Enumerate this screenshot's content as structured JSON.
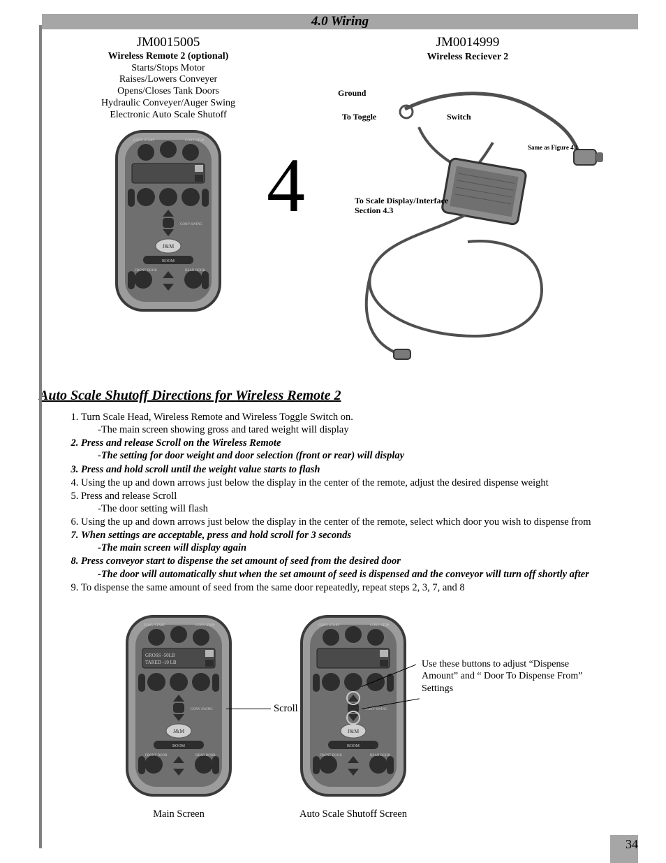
{
  "header": {
    "title": "4.0 Wiring"
  },
  "big4": "4",
  "remote": {
    "part_no": "JM0015005",
    "name": "Wireless Remote 2 (optional)",
    "lines": [
      "Starts/Stops Motor",
      "Raises/Lowers Conveyer",
      "Opens/Closes Tank Doors",
      "Hydraulic Conveyer/Auger Swing",
      "Electronic Auto Scale Shutoff"
    ],
    "btn_labels": {
      "conv_start": "CONV START",
      "conv_stop": "CONV STOP",
      "jm": "J&M",
      "boom": "BOOM",
      "front_door": "FRONT DOOR",
      "rear_door": "REAR DOOR",
      "conv_swing": "CONV SWING"
    },
    "lcd_main": {
      "line1": "GROSS  -50LB",
      "line2": "TARED  -10 LB"
    }
  },
  "receiver": {
    "part_no": "JM0014999",
    "name": "Wireless Reciever 2",
    "labels": {
      "ground": "Ground",
      "to_toggle": "To Toggle",
      "switch": "Switch",
      "same_as": "Same as Figure 4.1",
      "to_scale1": "To Scale Display/Interface",
      "to_scale2": "Section 4.3"
    }
  },
  "section_title": "Auto Scale Shutoff Directions for Wireless Remote 2",
  "steps": [
    {
      "n": "1.",
      "bold": false,
      "text": "Turn Scale Head, Wireless Remote and Wireless Toggle Switch on.",
      "sub": "-The main screen showing gross and tared weight will display",
      "sub_bold": false
    },
    {
      "n": "2.",
      "bold": true,
      "text": "Press and release Scroll on the Wireless Remote",
      "sub": "-The setting for door weight and door selection (front or rear) will display",
      "sub_bold": true
    },
    {
      "n": "3.",
      "bold": true,
      "text": "Press and hold scroll until the weight value starts to flash"
    },
    {
      "n": "4.",
      "bold": false,
      "text": "Using the up and down arrows just below the display in the center of the remote, adjust the desired dispense weight"
    },
    {
      "n": "5.",
      "bold": false,
      "text": "Press and release Scroll",
      "sub": "-The door setting will flash",
      "sub_bold": false
    },
    {
      "n": "6.",
      "bold": false,
      "text": "Using the up and down arrows just below the display in the center of the remote, select which door you wish to dispense from"
    },
    {
      "n": "7.",
      "bold": true,
      "text": "When settings are acceptable, press and hold scroll for 3 seconds",
      "sub": "-The main screen will display again",
      "sub_bold": true
    },
    {
      "n": "8.",
      "bold": true,
      "text": "Press conveyor start to dispense the set amount of seed from the desired door",
      "sub": "-The door will automatically shut when the set amount of seed is dispensed and the conveyor will turn off shortly after",
      "sub_bold": true
    },
    {
      "n": "9.",
      "bold": false,
      "text": "To dispense the same amount of seed from the same door repeatedly, repeat steps 2, 3, 7, and 8"
    }
  ],
  "bottom": {
    "left_caption": "Main Screen",
    "scroll_label": "Scroll",
    "right_caption": "Auto Scale Shutoff Screen",
    "right_callout": "Use these buttons to adjust “Dispense Amount” and “ Door To Dispense From” Settings"
  },
  "page_number": "34",
  "style": {
    "remote_body_fill": "#9c9c9c",
    "remote_body_stroke": "#3a3a3a",
    "remote_inner_fill": "#6f6f6f",
    "button_fill": "#2d2d2d",
    "button_stroke": "#1a1a1a",
    "lcd_fill": "#4a4a4a",
    "lcd_text": "#cfcfcf",
    "wire_stroke": "#4f4f4f",
    "box_fill": "#8d8d8d",
    "tiny_label": "#d0d0d0"
  }
}
